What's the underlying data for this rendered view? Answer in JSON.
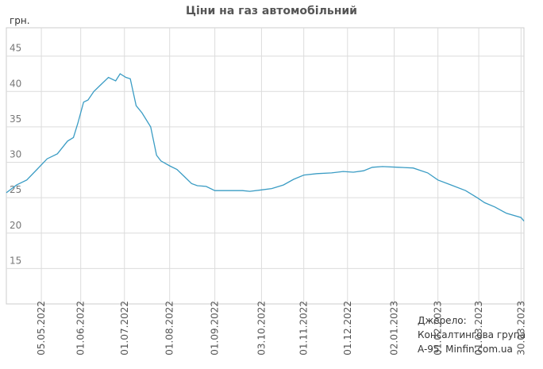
{
  "chart_data": {
    "type": "line",
    "title": "Ціни на газ автомобільний",
    "y_label": "грн.",
    "source": [
      "Джерело:",
      "Консалтингова група",
      "A-95, Minfin.com.ua"
    ],
    "x": [
      "2022-04-11",
      "2022-04-18",
      "2022-04-25",
      "2022-05-02",
      "2022-05-09",
      "2022-05-16",
      "2022-05-23",
      "2022-05-27",
      "2022-05-30",
      "2022-06-03",
      "2022-06-06",
      "2022-06-10",
      "2022-06-15",
      "2022-06-20",
      "2022-06-25",
      "2022-06-28",
      "2022-07-02",
      "2022-07-05",
      "2022-07-09",
      "2022-07-13",
      "2022-07-19",
      "2022-07-23",
      "2022-07-26",
      "2022-08-01",
      "2022-08-06",
      "2022-08-11",
      "2022-08-16",
      "2022-08-20",
      "2022-08-26",
      "2022-09-01",
      "2022-09-10",
      "2022-09-20",
      "2022-09-25",
      "2022-10-03",
      "2022-10-10",
      "2022-10-18",
      "2022-10-25",
      "2022-11-01",
      "2022-11-10",
      "2022-11-20",
      "2022-11-28",
      "2022-12-05",
      "2022-12-12",
      "2022-12-18",
      "2022-12-25",
      "2023-01-05",
      "2023-01-15",
      "2023-01-25",
      "2023-02-01",
      "2023-02-10",
      "2023-02-20",
      "2023-02-28",
      "2023-03-05",
      "2023-03-12",
      "2023-03-20",
      "2023-03-30",
      "2023-04-01"
    ],
    "series": [
      {
        "color": "#3a9cc4",
        "values": [
          25.7,
          26.8,
          27.5,
          29.0,
          30.5,
          31.2,
          33.0,
          33.5,
          35.5,
          38.5,
          38.8,
          40.0,
          41.0,
          42.0,
          41.5,
          42.5,
          42.0,
          41.8,
          38.0,
          37.0,
          35.0,
          31.0,
          30.2,
          29.5,
          29.0,
          28.0,
          27.0,
          26.7,
          26.6,
          26.0,
          26.0,
          26.0,
          25.9,
          26.1,
          26.3,
          26.8,
          27.6,
          28.2,
          28.4,
          28.5,
          28.7,
          28.6,
          28.8,
          29.3,
          29.4,
          29.3,
          29.2,
          28.5,
          27.5,
          26.8,
          26.0,
          25.0,
          24.3,
          23.7,
          22.8,
          22.2,
          21.7
        ]
      }
    ],
    "xlim": [
      "2022-04-11",
      "2023-04-01"
    ],
    "xticks": [
      {
        "value": "2022-05-05",
        "label": "05.05.2022"
      },
      {
        "value": "2022-06-01",
        "label": "01.06.2022"
      },
      {
        "value": "2022-07-01",
        "label": "01.07.2022"
      },
      {
        "value": "2022-08-01",
        "label": "01.08.2022"
      },
      {
        "value": "2022-09-01",
        "label": "01.09.2022"
      },
      {
        "value": "2022-10-03",
        "label": "03.10.2022"
      },
      {
        "value": "2022-11-01",
        "label": "01.11.2022"
      },
      {
        "value": "2022-12-01",
        "label": "01.12.2022"
      },
      {
        "value": "2023-01-02",
        "label": "02.01.2023"
      },
      {
        "value": "2023-02-01",
        "label": "01.02.2023"
      },
      {
        "value": "2023-03-01",
        "label": "01.03.2023"
      },
      {
        "value": "2023-03-30",
        "label": "30.03.2023"
      }
    ],
    "ylim": [
      10,
      49
    ],
    "yticks": [
      15,
      20,
      25,
      30,
      35,
      40,
      45
    ],
    "grid": true
  }
}
